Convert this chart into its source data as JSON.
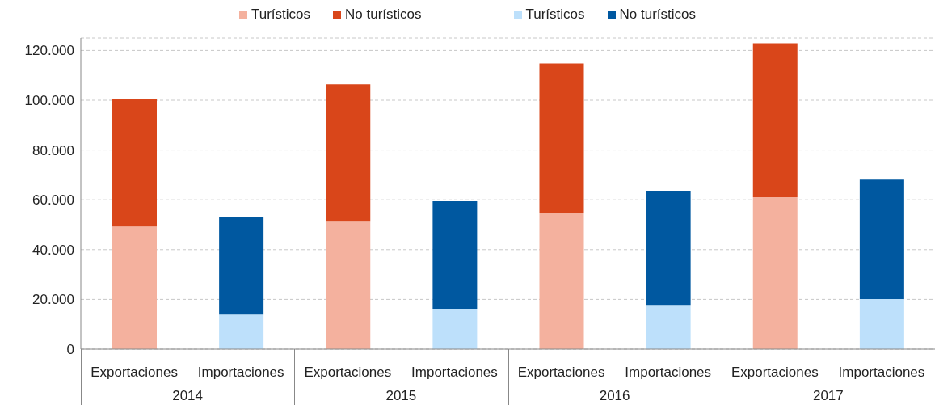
{
  "chart_data": {
    "type": "bar",
    "stacked": true,
    "categories": [
      "Exportaciones",
      "Importaciones",
      "Exportaciones",
      "Importaciones",
      "Exportaciones",
      "Importaciones",
      "Exportaciones",
      "Importaciones"
    ],
    "series": [
      {
        "name": "Turísticos",
        "color": "#f4b19e",
        "values": [
          49300,
          null,
          51200,
          null,
          54800,
          null,
          61000,
          null
        ]
      },
      {
        "name": "No turísticos",
        "color": "#d9461a",
        "values": [
          51200,
          null,
          55200,
          null,
          60000,
          null,
          61900,
          null
        ]
      },
      {
        "name": "Turísticos",
        "color": "#bde0fb",
        "values": [
          null,
          13900,
          null,
          16200,
          null,
          17800,
          null,
          20100
        ]
      },
      {
        "name": "No turísticos",
        "color": "#0058a0",
        "values": [
          null,
          39000,
          null,
          43200,
          null,
          45800,
          null,
          48000
        ]
      }
    ],
    "ylim": [
      0,
      125000
    ],
    "yticks": [
      {
        "value": 0,
        "label": "0"
      },
      {
        "value": 20000,
        "label": "20.000"
      },
      {
        "value": 40000,
        "label": "40.000"
      },
      {
        "value": 60000,
        "label": "60.000"
      },
      {
        "value": 80000,
        "label": "80.000"
      },
      {
        "value": 100000,
        "label": "100.000"
      },
      {
        "value": 120000,
        "label": "120.000"
      }
    ],
    "grid": "y",
    "legend": "top",
    "annotations": [
      "2014",
      "2015",
      "2016",
      "2017"
    ]
  }
}
